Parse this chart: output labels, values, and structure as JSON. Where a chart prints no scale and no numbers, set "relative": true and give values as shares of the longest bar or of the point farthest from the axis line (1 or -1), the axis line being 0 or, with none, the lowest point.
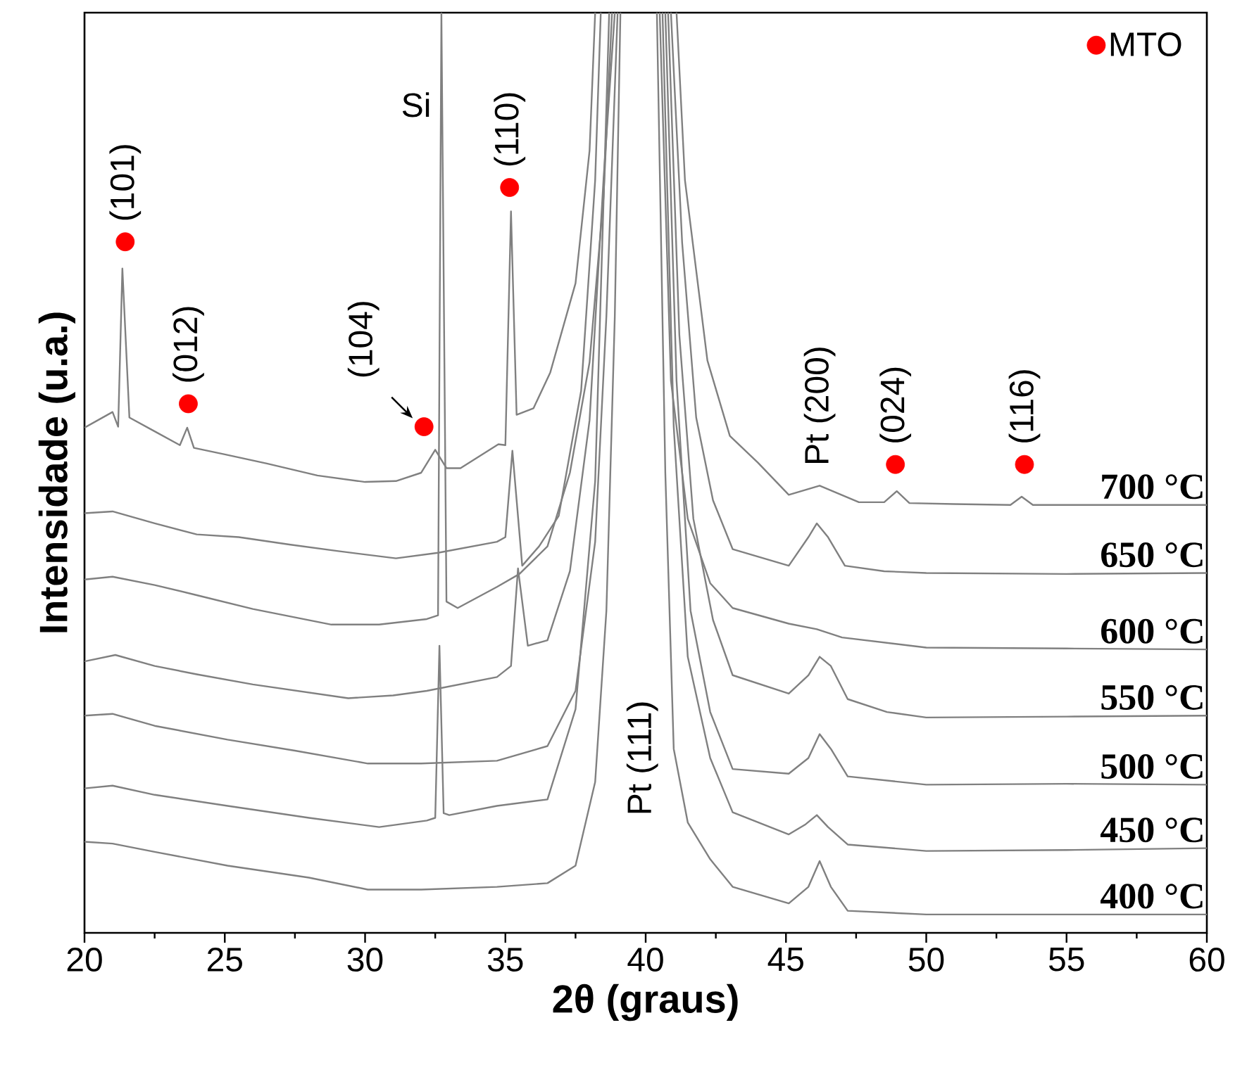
{
  "chart_data": {
    "type": "line",
    "relative": true,
    "xlabel": "2θ (graus)",
    "ylabel": "Intensidade (u.a.)",
    "xlim": [
      20,
      60
    ],
    "xticks": [
      20,
      25,
      30,
      35,
      40,
      45,
      50,
      55,
      60
    ],
    "legend": "top right",
    "line_style": "solid",
    "series": [
      {
        "name": "700 °C",
        "color": "#808080",
        "x": [
          20,
          21.0,
          21.2,
          21.35,
          21.6,
          22.5,
          23.4,
          23.66,
          23.9,
          25,
          26.5,
          28.3,
          30,
          31.1,
          32.0,
          32.5,
          32.9,
          33.4,
          34.75,
          35.0,
          35.2,
          35.4,
          36.0,
          36.6,
          37.5,
          38.0,
          38.2,
          39.6,
          41.1,
          41.4,
          42.2,
          43.0,
          44.0,
          45.1,
          46.2,
          47.6,
          48.5,
          48.95,
          49.4,
          51,
          53.0,
          53.4,
          53.8,
          56,
          60
        ],
        "values": [
          0.549,
          0.566,
          0.55,
          0.722,
          0.56,
          0.545,
          0.53,
          0.549,
          0.527,
          0.52,
          0.51,
          0.497,
          0.49,
          0.491,
          0.5,
          0.525,
          0.505,
          0.505,
          0.531,
          0.53,
          0.784,
          0.563,
          0.57,
          0.609,
          0.706,
          0.85,
          1.0,
          null,
          1.0,
          0.818,
          0.622,
          0.54,
          0.511,
          0.476,
          0.486,
          0.468,
          0.468,
          0.48,
          0.467,
          0.466,
          0.465,
          0.474,
          0.465,
          0.465,
          0.465
        ]
      },
      {
        "name": "650 °C",
        "color": "#808080",
        "x": [
          20,
          21,
          22.5,
          24,
          25.5,
          27.3,
          29,
          31.1,
          32.6,
          34.7,
          35.0,
          35.25,
          35.6,
          36.2,
          36.9,
          37.7,
          38.2,
          38.4,
          39.5,
          40.9,
          41.3,
          41.8,
          42.4,
          43.1,
          45.1,
          45.8,
          46.1,
          46.5,
          47.1,
          48.5,
          50,
          55,
          60
        ],
        "values": [
          0.456,
          0.458,
          0.445,
          0.433,
          0.43,
          0.422,
          0.415,
          0.407,
          0.413,
          0.425,
          0.43,
          0.524,
          0.399,
          0.42,
          0.453,
          0.589,
          0.818,
          1.0,
          null,
          1.0,
          0.75,
          0.56,
          0.47,
          0.417,
          0.399,
          0.43,
          0.445,
          0.43,
          0.399,
          0.393,
          0.391,
          0.39,
          0.391
        ]
      },
      {
        "name": "600 °C",
        "color": "#808080",
        "x": [
          20,
          21,
          22.5,
          24,
          26,
          28.8,
          30.5,
          32.2,
          32.6,
          32.72,
          32.9,
          33.3,
          34.7,
          35.5,
          36.5,
          37.3,
          38.0,
          38.5,
          38.8,
          39.6,
          40.5,
          40.9,
          41.5,
          42.3,
          43.1,
          45.1,
          46.1,
          47,
          50,
          55,
          60
        ],
        "values": [
          0.384,
          0.387,
          0.378,
          0.367,
          0.352,
          0.335,
          0.335,
          0.341,
          0.345,
          1.0,
          0.36,
          0.353,
          0.376,
          0.39,
          0.42,
          0.5,
          0.62,
          0.8,
          1.0,
          null,
          1.0,
          0.6,
          0.45,
          0.38,
          0.353,
          0.336,
          0.33,
          0.321,
          0.31,
          0.309,
          0.308
        ]
      },
      {
        "name": "550 °C",
        "color": "#808080",
        "x": [
          20,
          21.1,
          22.5,
          24,
          26,
          29.4,
          31,
          32.2,
          34.7,
          35.2,
          35.45,
          35.8,
          36.5,
          37.3,
          38.0,
          38.5,
          38.9,
          39.8,
          40.8,
          41.2,
          41.7,
          42.4,
          43.1,
          45.1,
          45.8,
          46.2,
          46.6,
          47.2,
          48.6,
          50,
          55,
          60
        ],
        "values": [
          0.295,
          0.302,
          0.29,
          0.281,
          0.27,
          0.255,
          0.258,
          0.263,
          0.278,
          0.29,
          0.396,
          0.312,
          0.318,
          0.393,
          0.557,
          0.82,
          1.0,
          null,
          1.0,
          0.65,
          0.45,
          0.34,
          0.28,
          0.26,
          0.28,
          0.3,
          0.29,
          0.254,
          0.24,
          0.234,
          0.235,
          0.236
        ]
      },
      {
        "name": "500 °C",
        "color": "#808080",
        "x": [
          20,
          21,
          22.5,
          25.1,
          27.5,
          30.1,
          32,
          34.7,
          36.5,
          37.5,
          38.2,
          38.6,
          39.0,
          39.9,
          40.7,
          41.1,
          41.6,
          42.3,
          43.1,
          45.1,
          45.8,
          46.2,
          46.6,
          47.2,
          50,
          55,
          60
        ],
        "values": [
          0.236,
          0.238,
          0.225,
          0.21,
          0.198,
          0.184,
          0.184,
          0.187,
          0.203,
          0.263,
          0.425,
          0.67,
          1.0,
          null,
          1.0,
          0.6,
          0.35,
          0.24,
          0.178,
          0.173,
          0.19,
          0.216,
          0.2,
          0.17,
          0.161,
          0.162,
          0.161
        ]
      },
      {
        "name": "450 °C",
        "color": "#808080",
        "x": [
          20,
          21,
          22.5,
          25.1,
          28,
          30.5,
          32.2,
          32.5,
          32.65,
          32.8,
          33.0,
          34.7,
          36.5,
          37.5,
          38.2,
          38.7,
          39.6,
          40.6,
          41.0,
          41.5,
          42.3,
          43.1,
          45.1,
          45.7,
          46.1,
          46.5,
          47.2,
          50,
          55,
          60
        ],
        "values": [
          0.157,
          0.16,
          0.15,
          0.138,
          0.125,
          0.115,
          0.122,
          0.125,
          0.312,
          0.13,
          0.128,
          0.138,
          0.145,
          0.243,
          0.491,
          1.0,
          null,
          1.0,
          0.55,
          0.3,
          0.19,
          0.131,
          0.107,
          0.118,
          0.128,
          0.115,
          0.096,
          0.089,
          0.09,
          0.092
        ]
      },
      {
        "name": "400 °C",
        "color": "#808080",
        "x": [
          20,
          21,
          22.5,
          25.1,
          28,
          30.1,
          32,
          34.7,
          36.5,
          37.5,
          38.2,
          38.6,
          38.9,
          39.1,
          39.8,
          40.4,
          40.7,
          41.0,
          41.5,
          42.3,
          43.1,
          45.1,
          45.8,
          46.2,
          46.6,
          47.2,
          50,
          55,
          60
        ],
        "values": [
          0.099,
          0.097,
          0.088,
          0.073,
          0.06,
          0.047,
          0.047,
          0.05,
          0.054,
          0.073,
          0.164,
          0.35,
          0.67,
          1.0,
          null,
          1.0,
          0.5,
          0.2,
          0.12,
          0.08,
          0.05,
          0.032,
          0.05,
          0.078,
          0.05,
          0.024,
          0.02,
          0.02,
          0.02
        ]
      },
      {
        "name": "MTO",
        "type": "scatter",
        "color": "#ff0000",
        "x": [
          21.45,
          23.7,
          32.1,
          35.15,
          48.9,
          53.5
        ],
        "values": [
          0.751,
          0.575,
          0.55,
          0.81,
          0.509,
          0.509
        ]
      }
    ],
    "annotations": [
      "Si",
      "Pt (111)",
      {
        "text": "(101)",
        "x": 21.45,
        "y": 0.751
      },
      {
        "text": "(012)",
        "x": 23.7,
        "y": 0.575
      },
      {
        "text": "(104)",
        "x": 32.1,
        "y": 0.55
      },
      {
        "text": "(110)",
        "x": 35.15,
        "y": 0.81
      },
      {
        "text": "Pt (200)",
        "x": 46.2,
        "y": 0.486
      },
      {
        "text": "(024)",
        "x": 48.9,
        "y": 0.509
      },
      {
        "text": "(116)",
        "x": 53.5,
        "y": 0.509
      }
    ]
  }
}
